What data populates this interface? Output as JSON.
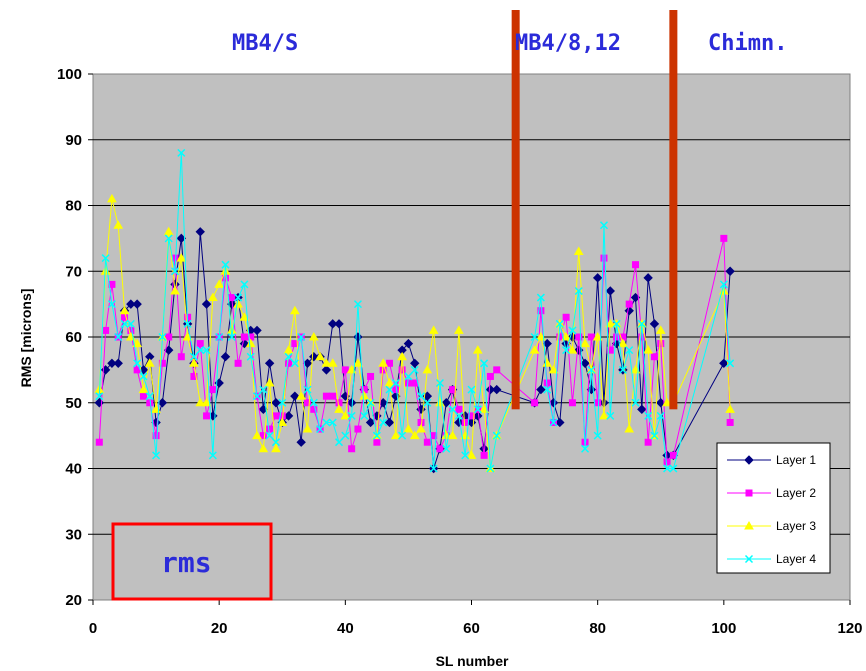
{
  "chart_data": {
    "type": "line",
    "xlabel": "SL number",
    "ylabel": "RMS [microns]",
    "xlim": [
      0,
      120
    ],
    "ylim": [
      20,
      100
    ],
    "xticks": [
      "0",
      "20",
      "40",
      "60",
      "80",
      "100",
      "120"
    ],
    "yticks": [
      "20",
      "30",
      "40",
      "50",
      "60",
      "70",
      "80",
      "90",
      "100"
    ],
    "grid": "horizontal",
    "legend_position": "bottom-right",
    "region_labels": [
      "MB4/S",
      "MB4/8,12",
      "Chimn."
    ],
    "annotation": "rms",
    "dividers_x": [
      67,
      92
    ],
    "series": [
      {
        "name": "Layer 1",
        "color": "#000080",
        "marker": "diamond",
        "x": [
          1,
          2,
          3,
          4,
          5,
          6,
          7,
          8,
          9,
          10,
          11,
          12,
          13,
          14,
          15,
          16,
          17,
          18,
          19,
          20,
          21,
          22,
          23,
          24,
          25,
          26,
          27,
          28,
          29,
          30,
          31,
          32,
          33,
          34,
          35,
          36,
          37,
          38,
          39,
          40,
          41,
          42,
          43,
          44,
          45,
          46,
          47,
          48,
          49,
          50,
          51,
          52,
          53,
          54,
          55,
          56,
          57,
          58,
          59,
          60,
          61,
          62,
          63,
          64,
          70,
          71,
          72,
          73,
          74,
          75,
          76,
          77,
          78,
          79,
          80,
          81,
          82,
          83,
          84,
          85,
          86,
          87,
          88,
          89,
          90,
          91,
          92,
          100,
          101
        ],
        "y": [
          50,
          55,
          56,
          56,
          64,
          65,
          65,
          55,
          57,
          47,
          50,
          58,
          68,
          75,
          62,
          56,
          76,
          65,
          48,
          53,
          57,
          65,
          66,
          59,
          61,
          61,
          49,
          56,
          50,
          47,
          48,
          51,
          44,
          56,
          57,
          57,
          55,
          62,
          62,
          51,
          50,
          60,
          52,
          47,
          48,
          50,
          47,
          51,
          58,
          59,
          56,
          49,
          51,
          40,
          43,
          50,
          52,
          47,
          48,
          47,
          48,
          43,
          52,
          52,
          50,
          52,
          59,
          50,
          47,
          59,
          60,
          58,
          56,
          52,
          69,
          50,
          67,
          59,
          55,
          64,
          66,
          49,
          69,
          62,
          50,
          42,
          42,
          56,
          70
        ]
      },
      {
        "name": "Layer 2",
        "color": "#ff00ff",
        "marker": "square",
        "x": [
          1,
          2,
          3,
          4,
          5,
          6,
          7,
          8,
          9,
          10,
          11,
          12,
          13,
          14,
          15,
          16,
          17,
          18,
          19,
          20,
          21,
          22,
          23,
          24,
          25,
          26,
          27,
          28,
          29,
          30,
          31,
          32,
          33,
          34,
          35,
          36,
          37,
          38,
          39,
          40,
          41,
          42,
          43,
          44,
          45,
          46,
          47,
          48,
          49,
          50,
          51,
          52,
          53,
          54,
          55,
          56,
          57,
          58,
          59,
          60,
          61,
          62,
          63,
          64,
          70,
          71,
          72,
          73,
          74,
          75,
          76,
          77,
          78,
          79,
          80,
          81,
          82,
          83,
          84,
          85,
          86,
          87,
          88,
          89,
          90,
          91,
          92,
          100,
          101
        ],
        "y": [
          44,
          61,
          68,
          60,
          63,
          61,
          55,
          51,
          50,
          45,
          56,
          60,
          72,
          57,
          63,
          54,
          59,
          48,
          52,
          60,
          69,
          66,
          56,
          60,
          60,
          51,
          45,
          46,
          48,
          48,
          56,
          59,
          60,
          50,
          49,
          46,
          51,
          51,
          50,
          55,
          43,
          46,
          52,
          54,
          44,
          55,
          56,
          52,
          55,
          53,
          53,
          47,
          44,
          45,
          43,
          45,
          52,
          49,
          47,
          48,
          49,
          42,
          54,
          55,
          50,
          64,
          53,
          47,
          60,
          63,
          50,
          60,
          44,
          60,
          50,
          72,
          58,
          60,
          60,
          65,
          71,
          60,
          44,
          57,
          59,
          41,
          42,
          75,
          47
        ]
      },
      {
        "name": "Layer 3",
        "color": "#ffff00",
        "marker": "triangle",
        "x": [
          1,
          2,
          3,
          4,
          5,
          6,
          7,
          8,
          9,
          10,
          11,
          12,
          13,
          14,
          15,
          16,
          17,
          18,
          19,
          20,
          21,
          22,
          23,
          24,
          25,
          26,
          27,
          28,
          29,
          30,
          31,
          32,
          33,
          34,
          35,
          36,
          37,
          38,
          39,
          40,
          41,
          42,
          43,
          44,
          45,
          46,
          47,
          48,
          49,
          50,
          51,
          52,
          53,
          54,
          55,
          56,
          57,
          58,
          59,
          60,
          61,
          62,
          63,
          64,
          70,
          71,
          72,
          73,
          74,
          75,
          76,
          77,
          78,
          79,
          80,
          81,
          82,
          83,
          84,
          85,
          86,
          87,
          88,
          89,
          90,
          91,
          92,
          100,
          101
        ],
        "y": [
          52,
          70,
          81,
          77,
          64,
          60,
          59,
          52,
          56,
          49,
          60,
          76,
          67,
          72,
          60,
          56,
          50,
          50,
          66,
          68,
          70,
          61,
          65,
          63,
          59,
          45,
          43,
          53,
          43,
          47,
          58,
          64,
          51,
          46,
          60,
          57,
          56,
          56,
          49,
          48,
          55,
          56,
          51,
          50,
          45,
          56,
          53,
          45,
          57,
          46,
          45,
          46,
          55,
          61,
          50,
          45,
          45,
          61,
          45,
          42,
          58,
          49,
          40,
          45,
          58,
          60,
          56,
          55,
          62,
          60,
          58,
          73,
          59,
          55,
          60,
          48,
          62,
          62,
          59,
          46,
          55,
          62,
          58,
          45,
          61,
          50,
          50,
          67,
          49
        ]
      },
      {
        "name": "Layer 4",
        "color": "#00ffff",
        "marker": "x",
        "x": [
          1,
          2,
          3,
          4,
          5,
          6,
          7,
          8,
          9,
          10,
          11,
          12,
          13,
          14,
          15,
          16,
          17,
          18,
          19,
          20,
          21,
          22,
          23,
          24,
          25,
          26,
          27,
          28,
          29,
          30,
          31,
          32,
          33,
          34,
          35,
          36,
          37,
          38,
          39,
          40,
          41,
          42,
          43,
          44,
          45,
          46,
          47,
          48,
          49,
          50,
          51,
          52,
          53,
          54,
          55,
          56,
          57,
          58,
          59,
          60,
          61,
          62,
          63,
          64,
          70,
          71,
          72,
          73,
          74,
          75,
          76,
          77,
          78,
          79,
          80,
          81,
          82,
          83,
          84,
          85,
          86,
          87,
          88,
          89,
          90,
          91,
          92,
          100,
          101
        ],
        "y": [
          51,
          72,
          65,
          60,
          62,
          62,
          56,
          54,
          51,
          42,
          60,
          75,
          70,
          88,
          62,
          57,
          58,
          58,
          42,
          60,
          71,
          60,
          66,
          68,
          57,
          51,
          52,
          45,
          44,
          50,
          57,
          56,
          60,
          52,
          50,
          46,
          47,
          47,
          44,
          45,
          48,
          65,
          48,
          50,
          45,
          47,
          52,
          53,
          45,
          54,
          55,
          51,
          50,
          40,
          53,
          43,
          49,
          48,
          42,
          52,
          49,
          56,
          40,
          45,
          60,
          66,
          52,
          47,
          62,
          58,
          61,
          67,
          43,
          55,
          45,
          77,
          48,
          62,
          55,
          58,
          50,
          62,
          48,
          45,
          48,
          40,
          40,
          68,
          56
        ]
      }
    ]
  }
}
